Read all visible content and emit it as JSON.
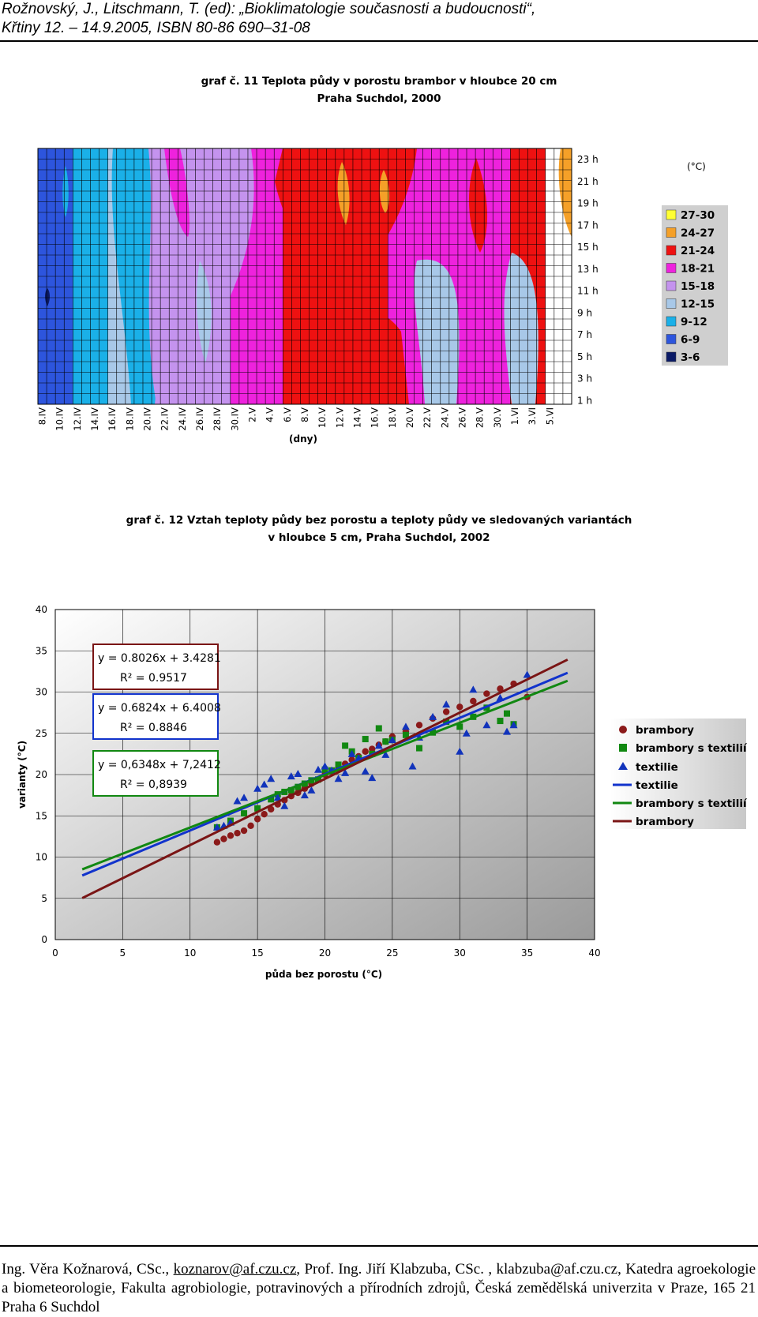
{
  "header": {
    "line1": "Rožnovský, J., Litschmann, T. (ed): „Bioklimatologie současnosti a budoucnosti“,",
    "line2": "Křtiny 12. – 14.9.2005, ISBN 80-86 690–31-08"
  },
  "heatmap": {
    "title_line1": "graf č. 11 Teplota půdy v porostu brambor v hloubce 20 cm",
    "title_line2": "Praha Suchdol, 2000",
    "xlabel": "(dny)",
    "unit_label": "(°C)",
    "x_ticks": [
      "8.IV",
      "10.IV",
      "12.IV",
      "14.IV",
      "16.IV",
      "18.IV",
      "20.IV",
      "22.IV",
      "24.IV",
      "26.IV",
      "28.IV",
      "30.IV",
      "2.V",
      "4.V",
      "6.V",
      "8.V",
      "10.V",
      "12.V",
      "14.V",
      "16.V",
      "18.V",
      "20.V",
      "22.V",
      "24.V",
      "26.V",
      "28.V",
      "30.V",
      "1.VI",
      "3.VI",
      "5.VI"
    ],
    "y_ticks": [
      "23 h",
      "21 h",
      "19 h",
      "17 h",
      "15 h",
      "13 h",
      "11 h",
      "9 h",
      "7 h",
      "5 h",
      "3 h",
      "1 h"
    ],
    "legend": [
      {
        "label": "27-30",
        "color": "#ffff33"
      },
      {
        "label": "24-27",
        "color": "#f5a028"
      },
      {
        "label": "21-24",
        "color": "#ee1111"
      },
      {
        "label": "18-21",
        "color": "#ee22dd"
      },
      {
        "label": "15-18",
        "color": "#c493ee"
      },
      {
        "label": "12-15",
        "color": "#a8c8e8"
      },
      {
        "label": "9-12",
        "color": "#1ab0e8"
      },
      {
        "label": "6-9",
        "color": "#2d55dd"
      },
      {
        "label": "3-6",
        "color": "#0a1a66"
      }
    ],
    "band_edges_x": [
      "8.IV",
      "12.IV",
      "16.IV",
      "20.IV",
      "30.IV",
      "6.V",
      "18.V",
      "1.VI",
      "5.VI"
    ],
    "band_classes": [
      "6-9",
      "9-12",
      "12-15",
      "15-18",
      "18-21",
      "21-24",
      "18-21",
      "21-24"
    ]
  },
  "scatter": {
    "title_line1": "graf č. 12 Vztah teploty půdy bez porostu a teploty půdy ve sledovaných variantách",
    "title_line2": "v hloubce 5 cm, Praha Suchdol, 2002",
    "ylabel": "varianty (°C)",
    "xlabel": "půda bez porostu (°C)",
    "eq_brambory_1": "y = 0.8026x + 3.4281",
    "eq_brambory_2": "R² = 0.9517",
    "eq_textilie_1": "y = 0.6824x + 6.4008",
    "eq_textilie_2": "R² = 0.8846",
    "eq_btextil_1": "y = 0,6348x + 7,2412",
    "eq_btextil_2": "R² = 0,8939",
    "legend": {
      "l1": "brambory",
      "l2": "brambory s textilií",
      "l3": "textilie",
      "l4": "textilie",
      "l5": "brambory s textilií",
      "l6": "brambory"
    }
  },
  "chart_data": [
    {
      "type": "heatmap",
      "title": "graf č. 11 Teplota půdy v porostu brambor v hloubce 20 cm Praha Suchdol, 2000",
      "xlabel": "(dny)",
      "ylabel": "",
      "x_categories": [
        "8.IV",
        "10.IV",
        "12.IV",
        "14.IV",
        "16.IV",
        "18.IV",
        "20.IV",
        "22.IV",
        "24.IV",
        "26.IV",
        "28.IV",
        "30.IV",
        "2.V",
        "4.V",
        "6.V",
        "8.V",
        "10.V",
        "12.V",
        "14.V",
        "16.V",
        "18.V",
        "20.V",
        "22.V",
        "24.V",
        "26.V",
        "28.V",
        "30.V",
        "1.VI",
        "3.VI",
        "5.VI"
      ],
      "y_categories": [
        "1 h",
        "3 h",
        "5 h",
        "7 h",
        "9 h",
        "11 h",
        "13 h",
        "15 h",
        "17 h",
        "19 h",
        "21 h",
        "23 h"
      ],
      "color_classes": [
        "3-6",
        "6-9",
        "9-12",
        "12-15",
        "15-18",
        "18-21",
        "21-24",
        "24-27",
        "27-30"
      ],
      "units": "°C",
      "grid": true
    },
    {
      "type": "scatter",
      "title": "graf č. 12 Vztah teploty půdy bez porostu a teploty půdy ve sledovaných variantách v hloubce 5 cm, Praha Suchdol, 2002",
      "xlabel": "půda bez porostu (°C)",
      "ylabel": "varianty (°C)",
      "xlim": [
        0,
        40
      ],
      "ylim": [
        0,
        40
      ],
      "grid": true,
      "legend_position": "right",
      "series": [
        {
          "name": "brambory",
          "marker": "circle",
          "color": "#8b1a1a",
          "x": [
            12,
            12.5,
            13,
            13.5,
            14,
            14.5,
            15,
            15.5,
            16,
            16.5,
            17,
            17.5,
            18,
            18.5,
            19,
            19.5,
            20,
            20.5,
            21,
            21.5,
            22,
            22.5,
            23,
            23.5,
            24,
            24.5,
            25,
            26,
            27,
            28,
            29,
            30,
            31,
            32,
            33,
            34,
            35
          ],
          "y": [
            11.8,
            12.2,
            12.6,
            12.9,
            13.2,
            13.8,
            14.6,
            15.2,
            15.8,
            16.4,
            16.9,
            17.4,
            17.8,
            18.3,
            18.9,
            19.4,
            20.0,
            20.4,
            20.8,
            21.3,
            21.8,
            22.2,
            22.8,
            23.1,
            23.6,
            24.0,
            24.6,
            25.2,
            26.0,
            26.8,
            27.6,
            28.2,
            28.9,
            29.8,
            30.4,
            31.0,
            29.4
          ]
        },
        {
          "name": "brambory s textilií",
          "marker": "square",
          "color": "#118811",
          "x": [
            12,
            13,
            14,
            15,
            16,
            16.5,
            17,
            17.5,
            18,
            18.5,
            19,
            19.5,
            20,
            20.5,
            21,
            21.5,
            22,
            22.5,
            23,
            23.5,
            24,
            24.5,
            25,
            26,
            27,
            28,
            29,
            30,
            31,
            32,
            33,
            33.5,
            34
          ],
          "y": [
            13.6,
            14.4,
            15.3,
            15.9,
            17.0,
            17.6,
            17.9,
            18.1,
            18.5,
            18.9,
            19.3,
            19.4,
            20.6,
            20.5,
            21.2,
            23.5,
            22.8,
            22.0,
            24.3,
            22.5,
            25.6,
            24.0,
            24.2,
            24.8,
            23.2,
            25.1,
            26.4,
            25.8,
            27.0,
            28.1,
            26.5,
            27.4,
            26.1
          ]
        },
        {
          "name": "textilie",
          "marker": "triangle",
          "color": "#1133bb",
          "x": [
            12,
            12.5,
            13,
            13.5,
            14,
            15,
            15.5,
            16,
            16.5,
            17,
            17.5,
            18,
            18.5,
            19,
            19.5,
            20,
            20.5,
            21,
            21.5,
            22,
            22.5,
            23,
            23.5,
            24,
            24.5,
            25,
            26,
            26.5,
            27,
            28,
            29,
            30,
            30.5,
            31,
            32,
            33,
            33.5,
            34,
            35
          ],
          "y": [
            13.6,
            13.8,
            14.2,
            16.8,
            17.2,
            18.3,
            18.8,
            19.5,
            17.2,
            16.2,
            19.8,
            20.1,
            17.5,
            18.1,
            20.6,
            21.0,
            20.5,
            19.5,
            20.2,
            22.5,
            22.0,
            20.4,
            19.6,
            23.5,
            22.4,
            24.2,
            25.8,
            21.0,
            24.5,
            27.0,
            28.5,
            22.8,
            25.0,
            30.3,
            26.0,
            29.3,
            25.2,
            26.0,
            32.1
          ]
        },
        {
          "name": "textilie",
          "type": "line",
          "color": "#1133cc",
          "x": [
            2,
            38
          ],
          "y": [
            7.77,
            32.33
          ]
        },
        {
          "name": "brambory s textilií",
          "type": "line",
          "color": "#118811",
          "x": [
            2,
            38
          ],
          "y": [
            8.51,
            31.36
          ]
        },
        {
          "name": "brambory",
          "type": "line",
          "color": "#7a1515",
          "x": [
            2,
            38
          ],
          "y": [
            5.03,
            33.93
          ]
        }
      ]
    }
  ]
}
